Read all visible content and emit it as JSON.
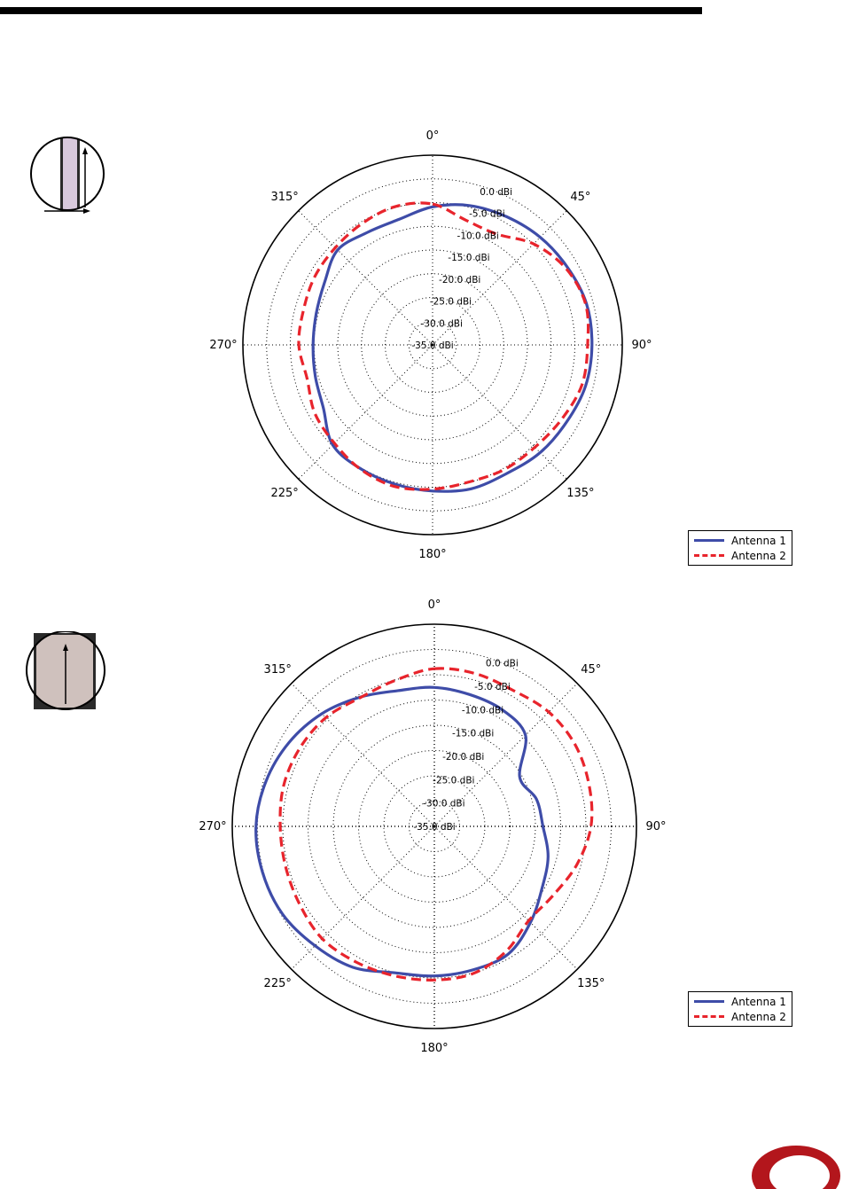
{
  "colors": {
    "antenna1": "#3e4ca8",
    "antenna2": "#e8242c",
    "logo": "#b3161c"
  },
  "icons": [
    "antenna-orientation-horizontal-icon",
    "antenna-orientation-vertical-icon",
    "company-logo-icon"
  ],
  "chart_data": [
    {
      "type": "polar-line",
      "r_min_dbi": -35,
      "r_max_dbi": 5,
      "angular_tick_labels": [
        "0°",
        "45°",
        "90°",
        "135°",
        "180°",
        "225°",
        "270°",
        "315°"
      ],
      "radial_tick_labels": [
        "0.0 dBi",
        "-5.0 dBi",
        "-10.0 dBi",
        "-15.0 dBi",
        "-20.0 dBi",
        "-25.0 dBi",
        "-30.0 dBi",
        "-35.0 dBi"
      ],
      "legend": [
        "Antenna 1",
        "Antenna 2"
      ],
      "legend_position": "lower-right",
      "grid": true,
      "series": [
        {
          "name": "Antenna 1",
          "angles_deg": [
            0,
            15,
            30,
            45,
            60,
            75,
            90,
            105,
            120,
            135,
            150,
            165,
            180,
            195,
            210,
            225,
            240,
            255,
            270,
            285,
            300,
            315,
            330,
            345
          ],
          "values_dbi": [
            -5.9,
            -4.6,
            -3.8,
            -2.9,
            -2.2,
            -1.4,
            -1.4,
            -1.6,
            -2.4,
            -2.9,
            -3.7,
            -3.6,
            -4.2,
            -4.6,
            -4.8,
            -5.2,
            -8.4,
            -9.4,
            -9.8,
            -9.6,
            -8.7,
            -6.7,
            -7.6,
            -7.6
          ]
        },
        {
          "name": "Antenna 2",
          "angles_deg": [
            0,
            15,
            30,
            45,
            60,
            75,
            90,
            105,
            120,
            135,
            150,
            165,
            180,
            195,
            210,
            225,
            240,
            255,
            270,
            285,
            300,
            315,
            330,
            345
          ],
          "values_dbi": [
            -5.3,
            -7.8,
            -8.0,
            -4.9,
            -2.6,
            -1.6,
            -2.3,
            -2.4,
            -3.6,
            -4.5,
            -4.7,
            -5.1,
            -4.6,
            -4.1,
            -4.7,
            -5.7,
            -6.3,
            -7.6,
            -6.8,
            -6.8,
            -6.3,
            -6.0,
            -5.4,
            -4.8
          ]
        }
      ]
    },
    {
      "type": "polar-line",
      "r_min_dbi": -35,
      "r_max_dbi": 5,
      "angular_tick_labels": [
        "0°",
        "45°",
        "90°",
        "135°",
        "180°",
        "225°",
        "270°",
        "315°"
      ],
      "radial_tick_labels": [
        "0.0 dBi",
        "-5.0 dBi",
        "-10.0 dBi",
        "-15.0 dBi",
        "-20.0 dBi",
        "-25.0 dBi",
        "-30.0 dBi",
        "-35.0 dBi"
      ],
      "legend": [
        "Antenna 1",
        "Antenna 2"
      ],
      "legend_position": "lower-right",
      "grid": true,
      "series": [
        {
          "name": "Antenna 1",
          "angles_deg": [
            0,
            15,
            30,
            45,
            60,
            75,
            90,
            105,
            120,
            135,
            150,
            165,
            180,
            195,
            210,
            225,
            240,
            255,
            270,
            285,
            300,
            315,
            330,
            345
          ],
          "values_dbi": [
            -7.5,
            -8.0,
            -8.3,
            -9.5,
            -15.5,
            -14.1,
            -13.5,
            -11.7,
            -10.4,
            -8.1,
            -5.8,
            -5.6,
            -5.4,
            -5.0,
            -2.8,
            -1.6,
            -0.3,
            0.2,
            0.3,
            -0.5,
            -1.8,
            -3.5,
            -5.5,
            -7.2
          ]
        },
        {
          "name": "Antenna 2",
          "angles_deg": [
            0,
            15,
            30,
            45,
            60,
            75,
            90,
            105,
            120,
            135,
            150,
            165,
            180,
            195,
            210,
            225,
            240,
            255,
            270,
            285,
            300,
            315,
            330,
            345
          ],
          "values_dbi": [
            -3.8,
            -3.7,
            -3.9,
            -3.0,
            -2.8,
            -3.3,
            -4.0,
            -5.8,
            -7.8,
            -8.6,
            -6.5,
            -4.9,
            -4.6,
            -4.4,
            -4.0,
            -3.6,
            -4.2,
            -4.5,
            -4.5,
            -4.1,
            -4.2,
            -4.6,
            -5.6,
            -5.1
          ]
        }
      ]
    }
  ]
}
